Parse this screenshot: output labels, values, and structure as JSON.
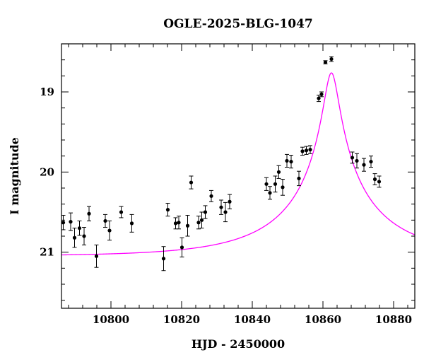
{
  "chart_data": {
    "type": "scatter",
    "title": "OGLE-2025-BLG-1047",
    "xlabel": "HJD - 2450000",
    "ylabel": "I magnitude",
    "xlim": [
      10786,
      10886
    ],
    "ylim": [
      21.7,
      18.4
    ],
    "y_inverted": true,
    "grid": false,
    "x_ticks": [
      10800,
      10820,
      10840,
      10860,
      10880
    ],
    "x_tick_labels": [
      "10800",
      "10820",
      "10840",
      "10860",
      "10880"
    ],
    "y_ticks": [
      19,
      20,
      21
    ],
    "y_tick_labels": [
      "19",
      "20",
      "21"
    ],
    "x_minor_step": 4,
    "y_minor_step": 0.2,
    "colors": {
      "model": "#ff00ff",
      "points": "#000000"
    },
    "series": [
      {
        "type": "errorbar",
        "x": [
          10786.5,
          10788.6,
          10789.7,
          10791.1,
          10792.4,
          10793.8,
          10795.9,
          10798.4,
          10799.6,
          10802.9,
          10805.9,
          10814.9,
          10816.1,
          10818.3,
          10819.2,
          10820.1,
          10821.7,
          10822.7,
          10824.8,
          10825.7,
          10826.7,
          10828.4,
          10831.2,
          10832.4,
          10833.6,
          10844.0,
          10845.0,
          10846.5,
          10847.5,
          10848.6,
          10849.8,
          10851.0,
          10853.2,
          10854.2,
          10855.3,
          10856.4,
          10858.8,
          10859.6,
          10860.7,
          10862.4,
          10868.3,
          10869.6,
          10871.6,
          10873.6,
          10874.7,
          10875.9
        ],
        "y": [
          20.63,
          20.62,
          20.82,
          20.7,
          20.8,
          20.52,
          21.05,
          20.61,
          20.73,
          20.5,
          20.64,
          21.08,
          20.47,
          20.64,
          20.63,
          20.94,
          20.67,
          20.13,
          20.63,
          20.6,
          20.5,
          20.3,
          20.44,
          20.5,
          20.37,
          20.15,
          20.26,
          20.15,
          20.0,
          20.19,
          19.86,
          19.87,
          20.08,
          19.74,
          19.73,
          19.72,
          19.08,
          19.03,
          18.63,
          18.59,
          19.82,
          19.86,
          19.91,
          19.87,
          20.09,
          20.12
        ],
        "yerr": [
          0.09,
          0.11,
          0.12,
          0.09,
          0.11,
          0.09,
          0.14,
          0.08,
          0.12,
          0.07,
          0.11,
          0.15,
          0.08,
          0.07,
          0.08,
          0.12,
          0.13,
          0.08,
          0.08,
          0.1,
          0.08,
          0.07,
          0.09,
          0.12,
          0.09,
          0.08,
          0.08,
          0.1,
          0.08,
          0.1,
          0.08,
          0.08,
          0.09,
          0.05,
          0.05,
          0.05,
          0.04,
          0.03,
          0.02,
          0.03,
          0.07,
          0.09,
          0.08,
          0.07,
          0.07,
          0.07
        ]
      },
      {
        "type": "line",
        "model": "paczynski",
        "t0": 10862.4,
        "u0": 0.066,
        "tE": 30,
        "baseline": 21.05,
        "blend_fraction": 0.51
      }
    ]
  }
}
